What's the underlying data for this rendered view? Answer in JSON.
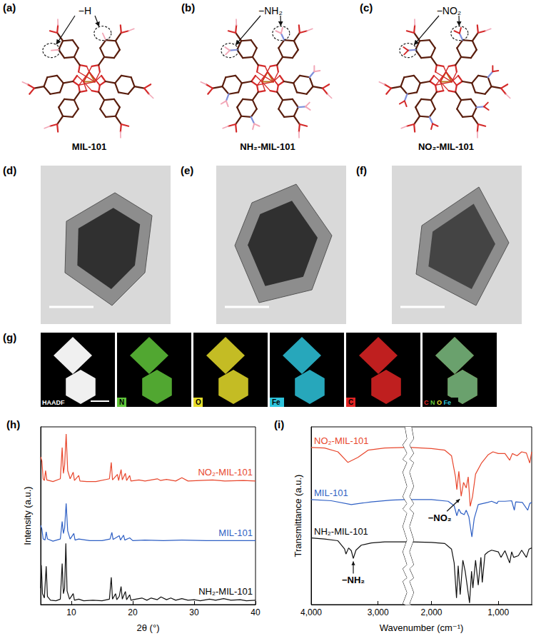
{
  "structures": {
    "items": [
      {
        "label": "(a)",
        "name": "MIL-101",
        "group": "−H"
      },
      {
        "label": "(b)",
        "name": "NH₂-MIL-101",
        "group": "−NH₂"
      },
      {
        "label": "(c)",
        "name": "NO₂-MIL-101",
        "group": "−NO₂"
      }
    ]
  },
  "tem": {
    "items": [
      {
        "label": "(d)"
      },
      {
        "label": "(e)"
      },
      {
        "label": "(f)"
      }
    ]
  },
  "eds": {
    "label": "(g)",
    "maps": [
      {
        "name": "HAADF",
        "color": "#f0f0f0"
      },
      {
        "name": "N",
        "color": "#5fc43a"
      },
      {
        "name": "O",
        "color": "#e6dd2a"
      },
      {
        "name": "Fe",
        "color": "#2ec4dc"
      },
      {
        "name": "C",
        "color": "#e02424"
      }
    ],
    "overlay": [
      "C",
      "N",
      "O",
      "Fe"
    ]
  },
  "chart_data": [
    {
      "label": "(h)",
      "type": "line",
      "x_label": "2θ (°)",
      "y_label": "Intensity (a.u.)",
      "xlim": [
        5,
        40
      ],
      "xticks": [
        10,
        20,
        30,
        40
      ],
      "ylim": [
        0,
        3.25
      ],
      "tick_labels": "x",
      "series": [
        {
          "name": "NO₂-MIL-101",
          "color": "#e8472d",
          "x": [
            5.0,
            5.2,
            5.4,
            5.6,
            5.8,
            6.0,
            7,
            8.2,
            8.5,
            8.7,
            8.9,
            9.15,
            9.4,
            9.8,
            10.3,
            10.5,
            11.2,
            11.4,
            12.5,
            14,
            16.2,
            16.5,
            16.7,
            17.5,
            17.7,
            18.1,
            18.3,
            18.8,
            19.0,
            19.5,
            19.7,
            21,
            22,
            24,
            24.5,
            25.5,
            27,
            28,
            29,
            31,
            33,
            35,
            38,
            40
          ],
          "values": [
            2.7,
            2.62,
            2.3,
            2.27,
            2.45,
            2.28,
            2.25,
            2.3,
            2.87,
            2.4,
            2.55,
            3.12,
            2.45,
            2.3,
            2.42,
            2.27,
            2.36,
            2.26,
            2.25,
            2.25,
            2.3,
            2.6,
            2.28,
            2.38,
            2.27,
            2.47,
            2.28,
            2.4,
            2.27,
            2.36,
            2.26,
            2.28,
            2.26,
            2.3,
            2.27,
            2.29,
            2.26,
            2.32,
            2.26,
            2.27,
            2.28,
            2.26,
            2.27,
            2.26
          ]
        },
        {
          "name": "MIL-101",
          "color": "#2e5fc4",
          "x": [
            5.0,
            5.2,
            5.4,
            5.7,
            5.9,
            6.1,
            7,
            8.2,
            8.5,
            8.7,
            8.9,
            9.15,
            9.4,
            9.8,
            10.4,
            10.6,
            11.2,
            13,
            15,
            16.3,
            16.6,
            16.8,
            17.8,
            18.0,
            18.5,
            18.7,
            19.5,
            20,
            22,
            25,
            28,
            32,
            36,
            40
          ],
          "values": [
            1.45,
            1.38,
            1.2,
            1.18,
            1.33,
            1.2,
            1.16,
            1.2,
            1.52,
            1.3,
            1.4,
            1.85,
            1.35,
            1.2,
            1.3,
            1.18,
            1.2,
            1.17,
            1.17,
            1.2,
            1.32,
            1.19,
            1.26,
            1.18,
            1.27,
            1.18,
            1.22,
            1.17,
            1.18,
            1.17,
            1.18,
            1.17,
            1.17,
            1.17
          ]
        },
        {
          "name": "NH₂-MIL-101",
          "color": "#111111",
          "x": [
            5.0,
            5.1,
            5.3,
            5.6,
            5.9,
            6.1,
            6.6,
            7.5,
            8.2,
            8.5,
            8.7,
            8.9,
            9.1,
            9.3,
            9.7,
            10.3,
            10.5,
            11.2,
            12,
            13.5,
            15,
            16.2,
            16.5,
            16.7,
            17.2,
            17.4,
            17.8,
            18.1,
            18.3,
            18.8,
            19.0,
            19.5,
            19.7,
            20.5,
            21.5,
            22.3,
            23,
            24,
            24.6,
            25.5,
            26.2,
            27,
            28,
            29,
            30,
            31,
            32.5,
            33.5,
            34.8,
            36,
            37.5,
            38.5,
            40
          ],
          "values": [
            0.3,
            0.72,
            0.2,
            0.12,
            0.7,
            0.15,
            0.08,
            0.07,
            0.1,
            0.75,
            0.2,
            0.3,
            1.12,
            0.25,
            0.1,
            0.2,
            0.08,
            0.1,
            0.07,
            0.08,
            0.07,
            0.1,
            0.5,
            0.1,
            0.2,
            0.09,
            0.15,
            0.33,
            0.1,
            0.24,
            0.09,
            0.18,
            0.08,
            0.1,
            0.12,
            0.08,
            0.12,
            0.09,
            0.14,
            0.09,
            0.12,
            0.08,
            0.11,
            0.08,
            0.09,
            0.07,
            0.1,
            0.08,
            0.11,
            0.08,
            0.09,
            0.07,
            0.08
          ]
        }
      ]
    },
    {
      "label": "(i)",
      "type": "line",
      "x_label": "Wavenumber (cm⁻¹)",
      "y_label": "Transmittance (a.u.)",
      "xlim": [
        4000,
        500
      ],
      "xticks": [
        4000,
        3000,
        2000,
        1000
      ],
      "x_break": [
        2300,
        2600
      ],
      "ylim": [
        0,
        3.2
      ],
      "tick_labels": "x",
      "series": [
        {
          "name": "NO₂-MIL-101",
          "color": "#e8472d",
          "x": [
            4000,
            3800,
            3600,
            3450,
            3300,
            3150,
            2900,
            2600,
            2300,
            2000,
            1800,
            1700,
            1640,
            1620,
            1590,
            1555,
            1520,
            1480,
            1450,
            1420,
            1385,
            1340,
            1250,
            1150,
            1080,
            1000,
            900,
            830,
            790,
            720,
            650,
            580,
            530,
            500
          ],
          "values": [
            2.83,
            2.82,
            2.75,
            2.56,
            2.65,
            2.78,
            2.82,
            2.83,
            2.83,
            2.81,
            2.78,
            2.68,
            2.3,
            2.07,
            2.4,
            1.95,
            2.2,
            2.1,
            2.3,
            1.77,
            1.95,
            2.35,
            2.55,
            2.7,
            2.75,
            2.72,
            2.72,
            2.6,
            2.72,
            2.68,
            2.75,
            2.73,
            2.55,
            2.75
          ]
        },
        {
          "name": "MIL-101",
          "color": "#2e5fc4",
          "x": [
            4000,
            3700,
            3400,
            3100,
            2800,
            2600,
            2300,
            2000,
            1750,
            1660,
            1620,
            1590,
            1560,
            1510,
            1480,
            1440,
            1395,
            1360,
            1300,
            1160,
            1100,
            1020,
            1000,
            900,
            800,
            760,
            740,
            640,
            560,
            530,
            500
          ],
          "values": [
            1.89,
            1.87,
            1.8,
            1.85,
            1.88,
            1.89,
            1.89,
            1.89,
            1.86,
            1.78,
            1.6,
            1.72,
            1.65,
            1.62,
            1.7,
            1.58,
            1.22,
            1.55,
            1.8,
            1.84,
            1.86,
            1.82,
            1.86,
            1.86,
            1.87,
            1.7,
            1.85,
            1.84,
            1.7,
            1.82,
            1.84
          ]
        },
        {
          "name": "NH₂-MIL-101",
          "color": "#111111",
          "x": [
            4000,
            3800,
            3600,
            3500,
            3480,
            3440,
            3400,
            3370,
            3330,
            3250,
            3100,
            2900,
            2600,
            2300,
            2000,
            1800,
            1700,
            1660,
            1625,
            1600,
            1570,
            1530,
            1495,
            1430,
            1400,
            1380,
            1340,
            1300,
            1260,
            1240,
            1200,
            1150,
            1100,
            1000,
            960,
            900,
            830,
            800,
            770,
            700,
            650,
            580,
            540,
            500
          ],
          "values": [
            1.2,
            1.18,
            1.15,
            1.0,
            0.91,
            1.02,
            0.97,
            0.83,
            0.98,
            1.07,
            1.11,
            1.13,
            1.13,
            1.13,
            1.12,
            1.1,
            1.0,
            0.75,
            0.12,
            0.7,
            0.18,
            0.8,
            0.6,
            0.03,
            0.6,
            0.3,
            0.8,
            0.35,
            0.85,
            0.4,
            0.9,
            0.95,
            0.98,
            0.95,
            0.85,
            0.97,
            0.75,
            0.95,
            0.85,
            0.88,
            0.98,
            0.85,
            1.0,
            1.02
          ]
        }
      ],
      "annotations": [
        {
          "text": "−NO₂",
          "series": "NO₂-MIL-101",
          "x": 1555
        },
        {
          "text": "−NH₂",
          "series": "NH₂-MIL-101",
          "x": 3370
        }
      ]
    }
  ]
}
